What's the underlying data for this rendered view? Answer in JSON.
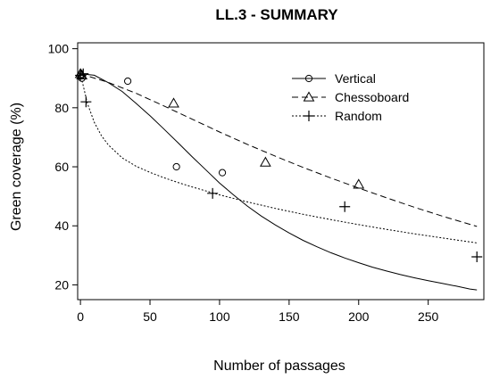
{
  "chart_data": {
    "type": "scatter",
    "title": "LL.3 - SUMMARY",
    "xlabel": "Number of passages",
    "ylabel": "Green coverage (%)",
    "xlim": [
      -2,
      290
    ],
    "ylim": [
      15,
      102
    ],
    "xticks": [
      0,
      50,
      100,
      150,
      200,
      250
    ],
    "yticks": [
      20,
      40,
      60,
      80,
      100
    ],
    "grid": false,
    "legend_position": "top-right",
    "series": [
      {
        "name": "Vertical",
        "marker": "circle",
        "line_style": "solid",
        "points": {
          "x": [
            0,
            1,
            34,
            69,
            102
          ],
          "y": [
            91,
            90,
            89,
            60,
            58
          ]
        },
        "fit": {
          "x": [
            0,
            10,
            20,
            30,
            40,
            50,
            60,
            70,
            80,
            90,
            100,
            110,
            120,
            130,
            140,
            150,
            160,
            170,
            180,
            190,
            200,
            210,
            220,
            230,
            240,
            250,
            260,
            270,
            280,
            285
          ],
          "y": [
            91.5,
            91,
            88.5,
            85.5,
            81.5,
            77.3,
            72.8,
            68.2,
            63.5,
            59,
            54.5,
            50.5,
            46.7,
            43.3,
            40.3,
            37.6,
            35.1,
            32.9,
            30.9,
            29.1,
            27.5,
            26,
            24.7,
            23.5,
            22.4,
            21.4,
            20.5,
            19.6,
            18.6,
            18.3
          ]
        }
      },
      {
        "name": "Chessoboard",
        "marker": "triangle",
        "line_style": "dashed",
        "points": {
          "x": [
            0,
            1,
            67,
            133,
            200
          ],
          "y": [
            91.5,
            91,
            81.5,
            61.5,
            54
          ]
        },
        "fit": {
          "x": [
            0,
            20,
            40,
            60,
            80,
            100,
            120,
            140,
            160,
            180,
            200,
            220,
            240,
            260,
            285
          ],
          "y": [
            91.5,
            88.6,
            84.9,
            80.6,
            76.2,
            71.8,
            67.6,
            63.6,
            59.8,
            56.2,
            52.8,
            49.5,
            46.3,
            43.3,
            39.8
          ]
        }
      },
      {
        "name": "Random",
        "marker": "plus",
        "line_style": "dotted",
        "points": {
          "x": [
            0,
            2,
            4,
            95,
            190,
            285
          ],
          "y": [
            91,
            91.5,
            82,
            51,
            46.5,
            29.5
          ]
        },
        "fit": {
          "x": [
            0,
            5,
            10,
            15,
            20,
            30,
            40,
            50,
            60,
            70,
            80,
            100,
            120,
            140,
            160,
            180,
            200,
            220,
            240,
            260,
            285
          ],
          "y": [
            91.5,
            81.5,
            75,
            70.6,
            67.4,
            63,
            60.2,
            58.1,
            56.3,
            54.7,
            53.2,
            50.5,
            48.1,
            45.9,
            43.9,
            42.1,
            40.4,
            38.8,
            37.3,
            35.9,
            34.2
          ]
        }
      }
    ]
  }
}
